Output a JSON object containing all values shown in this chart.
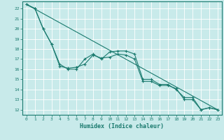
{
  "xlabel": "Humidex (Indice chaleur)",
  "bg_color": "#c8eaea",
  "line_color": "#1a7a6e",
  "grid_color": "#ffffff",
  "xlim": [
    -0.5,
    23.5
  ],
  "ylim": [
    11.5,
    22.7
  ],
  "yticks": [
    12,
    13,
    14,
    15,
    16,
    17,
    18,
    19,
    20,
    21,
    22
  ],
  "xticks": [
    0,
    1,
    2,
    3,
    4,
    5,
    6,
    7,
    8,
    9,
    10,
    11,
    12,
    13,
    14,
    15,
    16,
    17,
    18,
    19,
    20,
    21,
    22,
    23
  ],
  "series": [
    {
      "x": [
        0,
        1,
        2,
        3,
        4,
        5,
        6,
        7,
        8,
        9,
        10,
        11,
        12,
        13,
        14,
        15,
        16,
        17,
        18,
        19,
        20,
        21,
        22,
        23
      ],
      "y": [
        22.4,
        22.0,
        20.0,
        18.5,
        16.5,
        16.0,
        16.0,
        17.0,
        17.5,
        17.0,
        17.7,
        17.8,
        17.8,
        17.5,
        15.0,
        15.0,
        14.5,
        14.5,
        14.0,
        13.2,
        13.2,
        12.0,
        12.2,
        12.0
      ],
      "marker": true
    },
    {
      "x": [
        0,
        1,
        2,
        3,
        4,
        5,
        6,
        7,
        8,
        9,
        10,
        11,
        12,
        13,
        14,
        15,
        16,
        17,
        18,
        19,
        20,
        21,
        22,
        23
      ],
      "y": [
        22.4,
        22.0,
        20.0,
        18.5,
        16.3,
        16.1,
        16.2,
        16.5,
        17.4,
        17.1,
        17.2,
        17.5,
        17.4,
        17.0,
        14.8,
        14.8,
        14.4,
        14.4,
        14.1,
        13.0,
        13.0,
        12.0,
        12.2,
        12.0
      ],
      "marker": true
    },
    {
      "x": [
        0,
        23
      ],
      "y": [
        22.4,
        12.0
      ],
      "marker": false
    }
  ]
}
